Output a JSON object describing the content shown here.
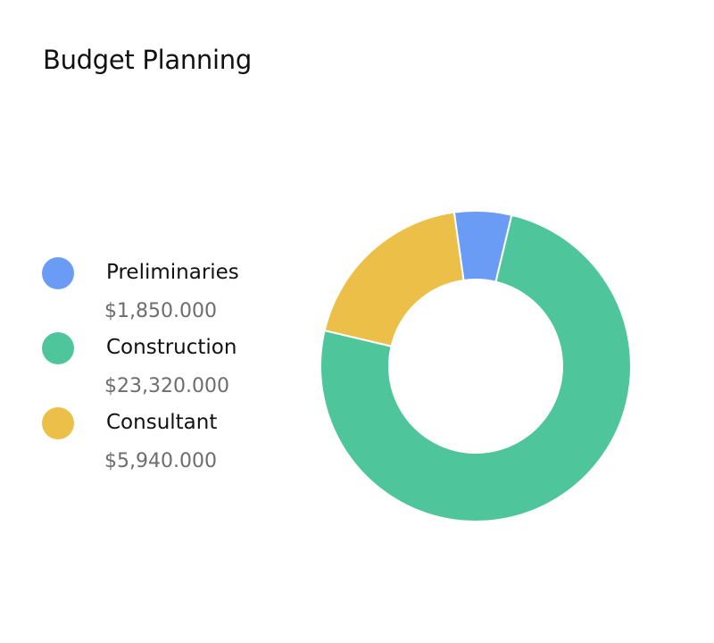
{
  "header": {
    "title": "Budget Planning"
  },
  "chart_data": {
    "type": "pie",
    "variant": "donut",
    "title": "Budget Planning",
    "categories": [
      "Preliminaries",
      "Construction",
      "Consultant"
    ],
    "values": [
      1850,
      23320,
      5940
    ],
    "value_labels": [
      "$1,850.000",
      "$23,320.000",
      "$5,940.000"
    ],
    "colors": [
      "#6b9cf5",
      "#4ec59b",
      "#ecbf48"
    ],
    "start_angle_deg": -8,
    "legend": "left"
  },
  "legend": {
    "items": [
      {
        "label": "Preliminaries",
        "value": "$1,850.000",
        "color": "#6b9cf5"
      },
      {
        "label": "Construction",
        "value": "$23,320.000",
        "color": "#4ec59b"
      },
      {
        "label": "Consultant",
        "value": "$5,940.000",
        "color": "#ecbf48"
      }
    ]
  }
}
